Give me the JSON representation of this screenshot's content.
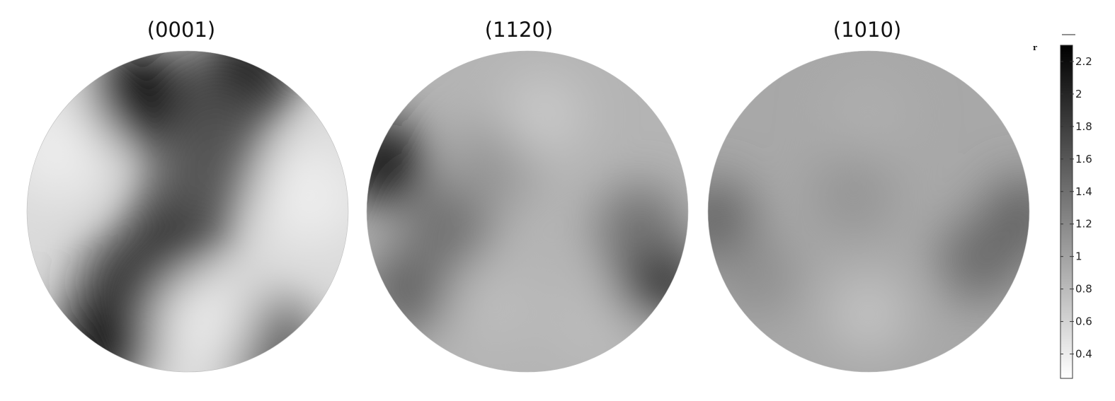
{
  "chart_data": {
    "type": "heatmap",
    "plots": [
      {
        "title": "(0001)",
        "hotspots": [
          {
            "x": 0.35,
            "y": 0.14,
            "value": 2.3
          },
          {
            "x": 0.68,
            "y": 0.08,
            "value": 2.2
          },
          {
            "x": 0.59,
            "y": 0.24,
            "value": 1.7
          },
          {
            "x": 0.48,
            "y": 0.52,
            "value": 1.9
          },
          {
            "x": 0.55,
            "y": 0.38,
            "value": 1.6
          },
          {
            "x": 0.26,
            "y": 0.88,
            "value": 2.3
          },
          {
            "x": 0.33,
            "y": 0.72,
            "value": 1.9
          },
          {
            "x": 0.75,
            "y": 0.93,
            "value": 1.6
          },
          {
            "x": 0.1,
            "y": 0.3,
            "value": 0.4
          },
          {
            "x": 0.88,
            "y": 0.45,
            "value": 0.4
          },
          {
            "x": 0.55,
            "y": 0.85,
            "value": 0.45
          }
        ]
      },
      {
        "title": "(1120)",
        "hotspots": [
          {
            "x": 0.05,
            "y": 0.35,
            "value": 2.2
          },
          {
            "x": 0.9,
            "y": 0.7,
            "value": 2.3
          },
          {
            "x": 0.12,
            "y": 0.75,
            "value": 1.5
          },
          {
            "x": 0.25,
            "y": 0.55,
            "value": 1.4
          },
          {
            "x": 0.85,
            "y": 0.55,
            "value": 1.4
          },
          {
            "x": 0.4,
            "y": 0.35,
            "value": 1.1
          },
          {
            "x": 0.4,
            "y": 0.8,
            "value": 0.8
          },
          {
            "x": 0.7,
            "y": 0.85,
            "value": 0.8
          },
          {
            "x": 0.55,
            "y": 0.2,
            "value": 0.7
          }
        ]
      },
      {
        "title": "(1010)",
        "hotspots": [
          {
            "x": 0.02,
            "y": 0.53,
            "value": 1.5
          },
          {
            "x": 0.98,
            "y": 0.52,
            "value": 1.5
          },
          {
            "x": 0.85,
            "y": 0.65,
            "value": 1.45
          },
          {
            "x": 0.45,
            "y": 0.45,
            "value": 1.1
          },
          {
            "x": 0.5,
            "y": 0.82,
            "value": 0.75
          },
          {
            "x": 0.5,
            "y": 0.2,
            "value": 0.9
          },
          {
            "x": 0.15,
            "y": 0.7,
            "value": 1.15
          }
        ]
      }
    ],
    "colorbar": {
      "label": "r",
      "min": 0.25,
      "max": 2.3,
      "ticks": [
        2.2,
        2,
        1.8,
        1.6,
        1.4,
        1.2,
        1,
        0.8,
        0.6,
        0.4
      ],
      "tick_labels": [
        "2.2",
        "2",
        "1.8",
        "1.6",
        "1.4",
        "1.2",
        "1",
        "0.8",
        "0.6",
        "0.4"
      ],
      "colormap": "white-to-black"
    }
  }
}
